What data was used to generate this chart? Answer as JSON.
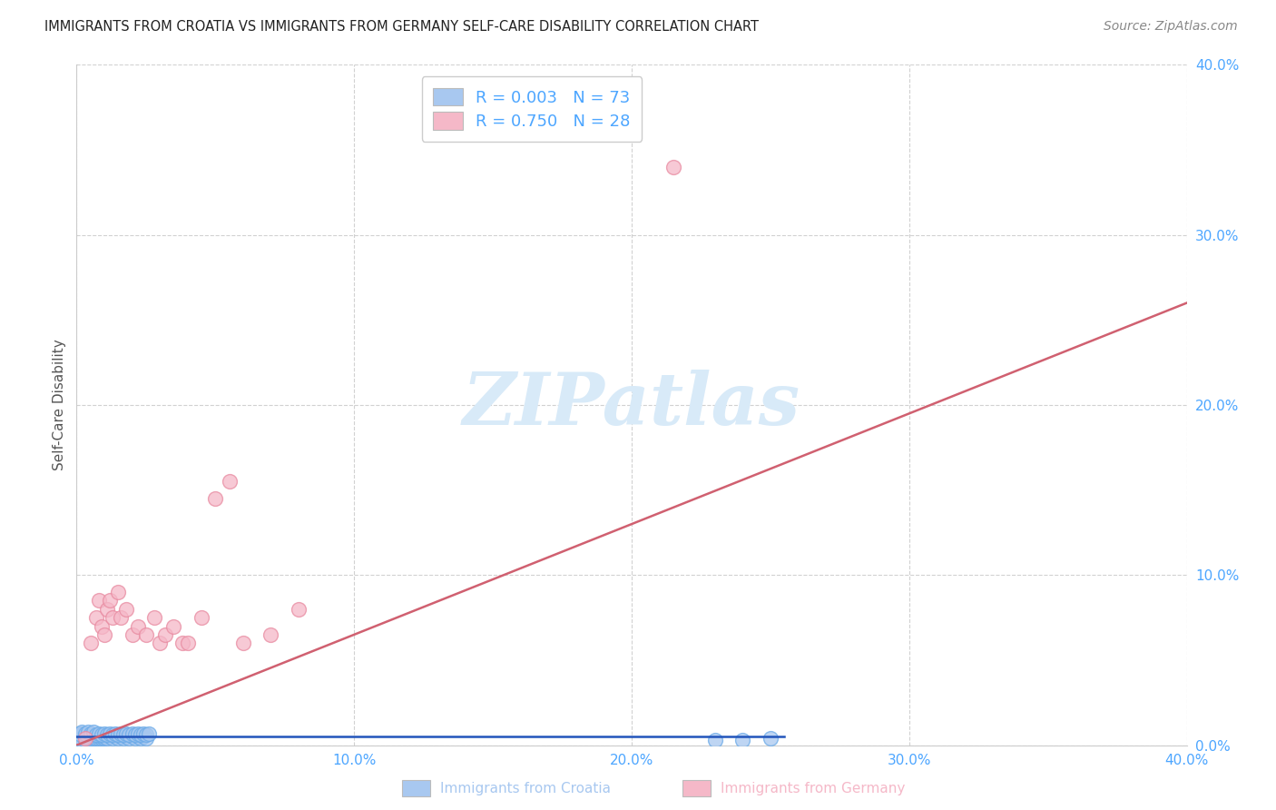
{
  "title": "IMMIGRANTS FROM CROATIA VS IMMIGRANTS FROM GERMANY SELF-CARE DISABILITY CORRELATION CHART",
  "source": "Source: ZipAtlas.com",
  "ylabel": "Self-Care Disability",
  "xlim": [
    0.0,
    0.4
  ],
  "ylim": [
    0.0,
    0.4
  ],
  "xtick_values": [
    0.0,
    0.1,
    0.2,
    0.3,
    0.4
  ],
  "ytick_values": [
    0.0,
    0.1,
    0.2,
    0.3,
    0.4
  ],
  "croatia_color": "#a8c8f0",
  "croatia_edge_color": "#6aaae8",
  "germany_color": "#f5b8c8",
  "germany_edge_color": "#e88aa0",
  "croatia_R": 0.003,
  "croatia_N": 73,
  "germany_R": 0.75,
  "germany_N": 28,
  "tick_color": "#4da6ff",
  "croatia_line_color": "#2255bb",
  "germany_line_color": "#d06070",
  "watermark_color": "#d8eaf8",
  "background_color": "#ffffff",
  "croatia_scatter_x": [
    0.001,
    0.001,
    0.002,
    0.002,
    0.002,
    0.002,
    0.003,
    0.003,
    0.003,
    0.003,
    0.004,
    0.004,
    0.004,
    0.005,
    0.005,
    0.005,
    0.005,
    0.006,
    0.006,
    0.006,
    0.007,
    0.007,
    0.008,
    0.008,
    0.008,
    0.009,
    0.009,
    0.01,
    0.01,
    0.011,
    0.012,
    0.013,
    0.014,
    0.015,
    0.016,
    0.017,
    0.018,
    0.019,
    0.02,
    0.021,
    0.022,
    0.023,
    0.024,
    0.025,
    0.001,
    0.002,
    0.003,
    0.004,
    0.005,
    0.006,
    0.007,
    0.008,
    0.009,
    0.01,
    0.011,
    0.012,
    0.013,
    0.014,
    0.015,
    0.016,
    0.017,
    0.018,
    0.019,
    0.02,
    0.021,
    0.022,
    0.023,
    0.024,
    0.025,
    0.026,
    0.23,
    0.24,
    0.25
  ],
  "croatia_scatter_y": [
    0.003,
    0.005,
    0.004,
    0.006,
    0.007,
    0.003,
    0.004,
    0.005,
    0.006,
    0.003,
    0.005,
    0.006,
    0.004,
    0.003,
    0.005,
    0.006,
    0.004,
    0.004,
    0.005,
    0.006,
    0.005,
    0.004,
    0.004,
    0.005,
    0.006,
    0.004,
    0.005,
    0.004,
    0.005,
    0.004,
    0.005,
    0.004,
    0.005,
    0.004,
    0.005,
    0.004,
    0.005,
    0.004,
    0.005,
    0.004,
    0.005,
    0.004,
    0.005,
    0.004,
    0.007,
    0.008,
    0.007,
    0.008,
    0.007,
    0.008,
    0.006,
    0.007,
    0.006,
    0.007,
    0.006,
    0.007,
    0.006,
    0.007,
    0.006,
    0.007,
    0.006,
    0.007,
    0.006,
    0.007,
    0.006,
    0.007,
    0.006,
    0.007,
    0.006,
    0.007,
    0.003,
    0.003,
    0.004
  ],
  "germany_scatter_x": [
    0.003,
    0.005,
    0.007,
    0.008,
    0.009,
    0.01,
    0.011,
    0.012,
    0.013,
    0.015,
    0.016,
    0.018,
    0.02,
    0.022,
    0.025,
    0.028,
    0.03,
    0.032,
    0.035,
    0.038,
    0.04,
    0.045,
    0.05,
    0.055,
    0.06,
    0.07,
    0.08,
    0.215
  ],
  "germany_scatter_y": [
    0.004,
    0.06,
    0.075,
    0.085,
    0.07,
    0.065,
    0.08,
    0.085,
    0.075,
    0.09,
    0.075,
    0.08,
    0.065,
    0.07,
    0.065,
    0.075,
    0.06,
    0.065,
    0.07,
    0.06,
    0.06,
    0.075,
    0.145,
    0.155,
    0.06,
    0.065,
    0.08,
    0.34
  ],
  "croatia_line_x": [
    0.0,
    0.255
  ],
  "croatia_line_y": [
    0.005,
    0.005
  ],
  "germany_line_x": [
    0.0,
    0.4
  ],
  "germany_line_y": [
    0.0,
    0.26
  ]
}
